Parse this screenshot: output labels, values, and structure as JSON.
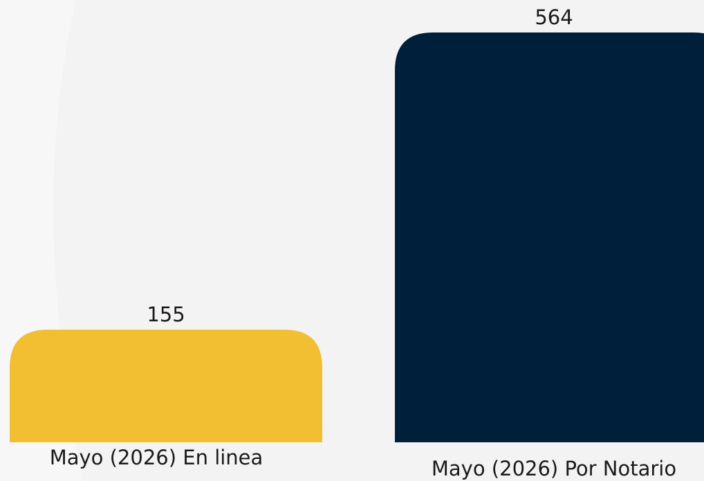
{
  "chart_data": {
    "type": "bar",
    "categories": [
      "Mayo (2026) En linea",
      "Mayo (2026) Por Notario"
    ],
    "values": [
      155,
      564
    ],
    "colors": [
      "#f2bf33",
      "#001f3b"
    ]
  }
}
